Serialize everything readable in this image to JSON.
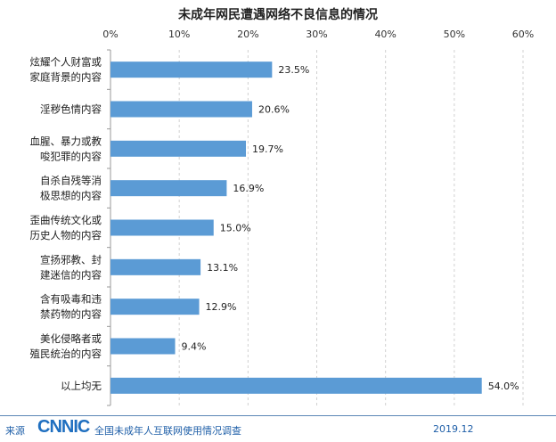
{
  "chart_data": {
    "type": "bar",
    "orientation": "horizontal",
    "title": "未成年网民遭遇网络不良信息的情况",
    "categories": [
      [
        "炫耀个人财富或",
        "家庭背景的内容"
      ],
      [
        "淫秽色情内容"
      ],
      [
        "血腥、暴力或教",
        "唆犯罪的内容"
      ],
      [
        "自杀自残等消",
        "极思想的内容"
      ],
      [
        "歪曲传统文化或",
        "历史人物的内容"
      ],
      [
        "宣扬邪教、封",
        "建迷信的内容"
      ],
      [
        "含有吸毒和违",
        "禁药物的内容"
      ],
      [
        "美化侵略者或",
        "殖民统治的内容"
      ],
      [
        "以上均无"
      ]
    ],
    "values": [
      23.5,
      20.6,
      19.7,
      16.9,
      15.0,
      13.1,
      12.9,
      9.4,
      54.0
    ],
    "data_labels": [
      "23.5%",
      "20.6%",
      "19.7%",
      "16.9%",
      "15.0%",
      "13.1%",
      "12.9%",
      "9.4%",
      "54.0%"
    ],
    "xticks": [
      "0%",
      "10%",
      "20%",
      "30%",
      "40%",
      "50%",
      "60%"
    ],
    "xlim": [
      0,
      60
    ],
    "x_axis_position": "top",
    "grid": "vertical dashed",
    "bar_color": "#5b9bd5"
  },
  "footer": {
    "source_label": "来源",
    "logo": "CNNIC",
    "survey": "全国未成年人互联网使用情况调查",
    "date": "2019.12"
  }
}
